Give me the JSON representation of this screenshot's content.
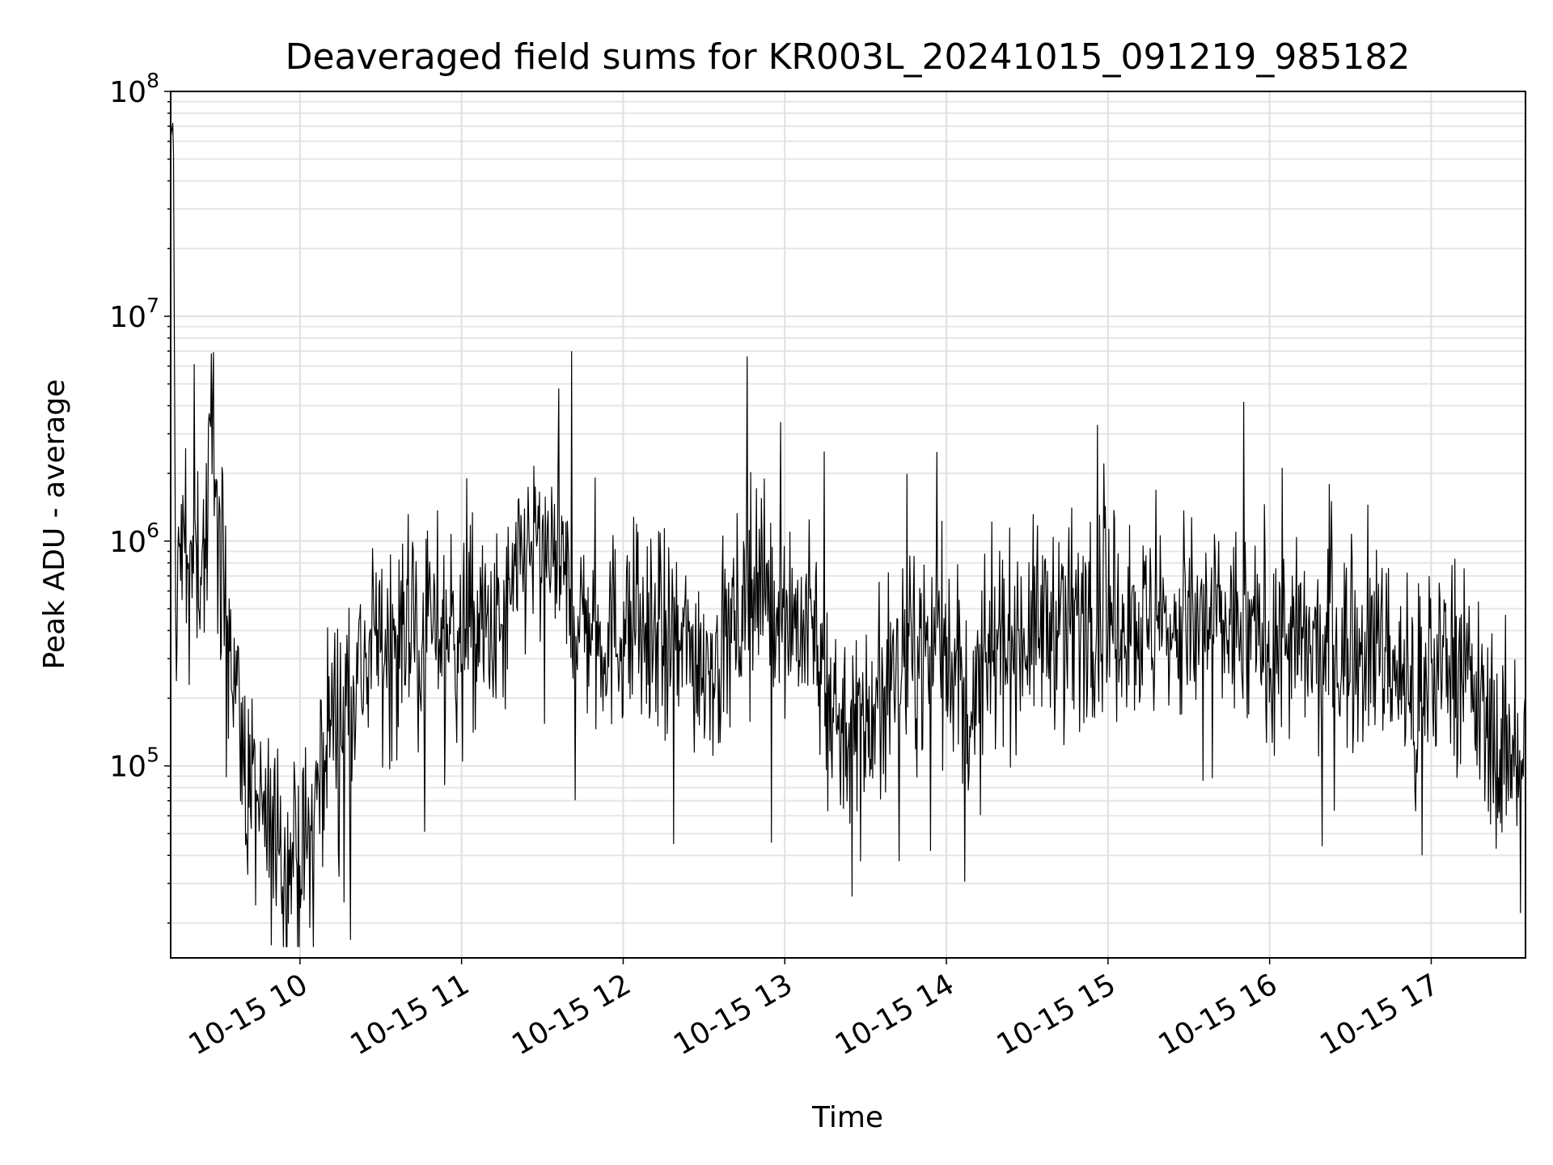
{
  "chart_data": {
    "type": "line",
    "title": "Deaveraged field sums for KR003L_20241015_091219_985182",
    "xlabel": "Time",
    "ylabel": "Peak ADU - average",
    "yscale": "log",
    "grid": true,
    "x_range": [
      "2024-10-15 09:12",
      "2024-10-15 17:35"
    ],
    "ylim": [
      14000,
      100000000
    ],
    "x_ticks": [
      "10-15 10",
      "10-15 11",
      "10-15 12",
      "10-15 13",
      "10-15 14",
      "10-15 15",
      "10-15 16",
      "10-15 17"
    ],
    "y_ticks": [
      {
        "base": "10",
        "exp": "5",
        "value": 100000
      },
      {
        "base": "10",
        "exp": "6",
        "value": 1000000
      },
      {
        "base": "10",
        "exp": "7",
        "value": 10000000
      },
      {
        "base": "10",
        "exp": "8",
        "value": 100000000
      }
    ],
    "series": [
      {
        "color": "#000000",
        "points": [
          [
            "2024-10-15 09:12",
            62000000
          ],
          [
            "2024-10-15 09:13",
            75000000
          ],
          [
            "2024-10-15 09:14",
            200000
          ],
          [
            "2024-10-15 09:15",
            900000
          ],
          [
            "2024-10-15 09:20",
            800000
          ],
          [
            "2024-10-15 09:25",
            900000
          ],
          [
            "2024-10-15 09:28",
            4500000
          ],
          [
            "2024-10-15 09:30",
            1000000
          ],
          [
            "2024-10-15 09:35",
            300000
          ],
          [
            "2024-10-15 09:40",
            90000
          ],
          [
            "2024-10-15 09:45",
            60000
          ],
          [
            "2024-10-15 09:50",
            45000
          ],
          [
            "2024-10-15 09:55",
            40000
          ],
          [
            "2024-10-15 10:00",
            35000
          ],
          [
            "2024-10-15 10:05",
            60000
          ],
          [
            "2024-10-15 10:10",
            150000
          ],
          [
            "2024-10-15 10:20",
            250000
          ],
          [
            "2024-10-15 10:30",
            350000
          ],
          [
            "2024-10-15 10:45",
            450000
          ],
          [
            "2024-10-15 11:00",
            400000
          ],
          [
            "2024-10-15 11:15",
            380000
          ],
          [
            "2024-10-15 11:25",
            1000000
          ],
          [
            "2024-10-15 11:35",
            700000
          ],
          [
            "2024-10-15 11:50",
            380000
          ],
          [
            "2024-10-15 12:05",
            420000
          ],
          [
            "2024-10-15 12:20",
            330000
          ],
          [
            "2024-10-15 12:35",
            300000
          ],
          [
            "2024-10-15 12:50",
            650000
          ],
          [
            "2024-10-15 13:00",
            500000
          ],
          [
            "2024-10-15 13:10",
            380000
          ],
          [
            "2024-10-15 13:20",
            160000
          ],
          [
            "2024-10-15 13:30",
            150000
          ],
          [
            "2024-10-15 13:45",
            300000
          ],
          [
            "2024-10-15 14:00",
            380000
          ],
          [
            "2024-10-15 14:10",
            170000
          ],
          [
            "2024-10-15 14:20",
            350000
          ],
          [
            "2024-10-15 14:40",
            450000
          ],
          [
            "2024-10-15 15:00",
            480000
          ],
          [
            "2024-10-15 15:20",
            400000
          ],
          [
            "2024-10-15 15:40",
            430000
          ],
          [
            "2024-10-15 16:00",
            380000
          ],
          [
            "2024-10-15 16:20",
            300000
          ],
          [
            "2024-10-15 16:35",
            360000
          ],
          [
            "2024-10-15 16:45",
            320000
          ],
          [
            "2024-10-15 16:55",
            150000
          ],
          [
            "2024-10-15 17:05",
            380000
          ],
          [
            "2024-10-15 17:15",
            220000
          ],
          [
            "2024-10-15 17:25",
            110000
          ],
          [
            "2024-10-15 17:35",
            140000
          ]
        ]
      }
    ]
  }
}
